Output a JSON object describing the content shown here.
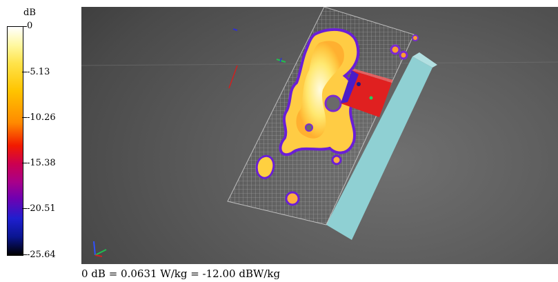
{
  "colorbar": {
    "unit": "dB",
    "ticks": [
      "0",
      "-5.13",
      "-10.26",
      "-15.38",
      "-20.51",
      "-25.64"
    ],
    "colors": [
      "#ffffff",
      "#ffe34a",
      "#ffc400",
      "#f21a00",
      "#a8008a",
      "#1f1fcf",
      "#000000"
    ]
  },
  "caption": "0 dB = 0.0631 W/kg = -12.00 dBW/kg",
  "scene": {
    "background": "#5d5d5d",
    "phantom_color": "#8fd0d3",
    "grid_color": "#c9c9c9"
  }
}
